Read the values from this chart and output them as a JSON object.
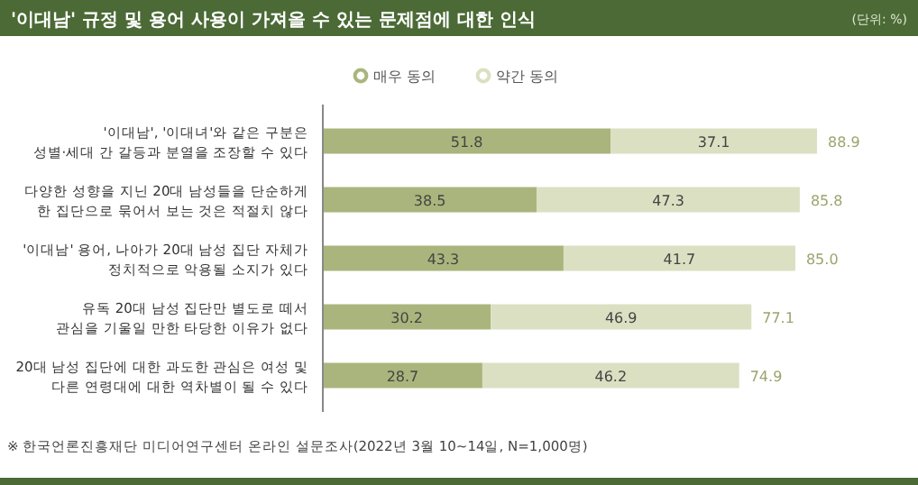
{
  "chart_data": {
    "type": "bar",
    "orientation": "horizontal",
    "stacked": true,
    "title": "'이대남' 규정 및 용어 사용이 가져올 수 있는 문제점에 대한 인식",
    "subtitle": "(단위: %)",
    "categories": [
      "'이대남', '이대녀'와 같은 구분은\n성별·세대 간 갈등과 분열을 조장할 수 있다",
      "다양한 성향을 지닌 20대 남성들을 단순하게\n한 집단으로 묶어서 보는 것은 적절치 않다",
      "'이대남' 용어, 나아가 20대 남성 집단 자체가\n정치적으로 악용될 소지가 있다",
      "유독 20대 남성 집단만 별도로 떼서\n관심을 기울일 만한 타당한 이유가 없다",
      "20대 남성 집단에 대한 과도한 관심은 여성 및\n다른 연령대에 대한 역차별이 될 수 있다"
    ],
    "series": [
      {
        "name": "매우 동의",
        "color": "#a9b57c",
        "values": [
          51.8,
          38.5,
          43.3,
          30.2,
          28.7
        ]
      },
      {
        "name": "약간 동의",
        "color": "#dbe0c2",
        "values": [
          37.1,
          47.3,
          41.7,
          46.9,
          46.2
        ]
      }
    ],
    "totals": [
      "88.9",
      "85.8",
      "85.0",
      "77.1",
      "74.9"
    ],
    "data_labels": true,
    "legend": "top",
    "tick_labels": "y",
    "annotations": [
      "※ 한국언론진흥재단 미디어연구센터 온라인 설문조사(2022년 3월 10~14일, N=1,000명)"
    ]
  }
}
